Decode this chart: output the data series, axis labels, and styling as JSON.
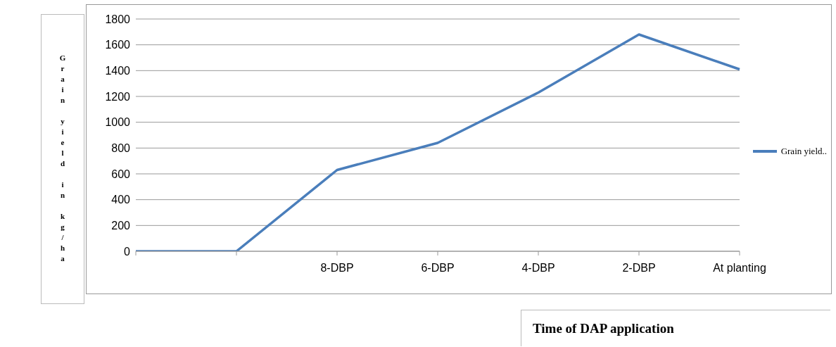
{
  "chart_data": {
    "type": "line",
    "xlabel": "Time of DAP application",
    "ylabel": "Grain yield in kg/ha",
    "categories": [
      null,
      null,
      "8-DBP",
      "6-DBP",
      "4-DBP",
      "2-DBP",
      "At planting"
    ],
    "series": [
      {
        "name": "Grain yield..",
        "color": "#4a7ebb",
        "values": [
          0,
          0,
          630,
          840,
          1230,
          1680,
          1410
        ]
      }
    ],
    "ylim": [
      0,
      1800
    ],
    "yticks": [
      0,
      200,
      400,
      600,
      800,
      1000,
      1200,
      1400,
      1600,
      1800
    ],
    "grid": "y",
    "legend": "right",
    "marker": "none",
    "line_style": "solid"
  }
}
